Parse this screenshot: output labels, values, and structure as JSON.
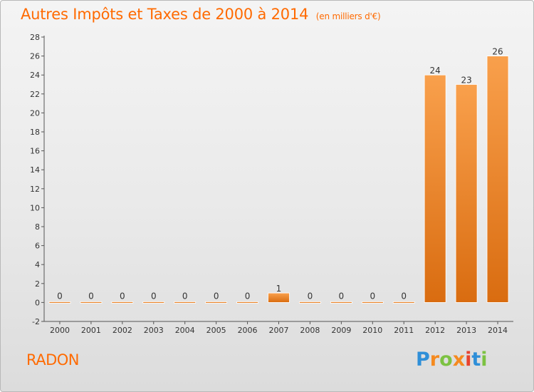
{
  "header": {
    "title": "Autres Impôts et Taxes de 2000 à 2014",
    "subtitle": "(en milliers d'€)"
  },
  "footer": {
    "place": "RADON",
    "brand": "Proxiti"
  },
  "colors": {
    "title": "#ff6a00",
    "bar_light": "#f9a04c",
    "bar_dark": "#d96c10",
    "logo": [
      "#2f8fd8",
      "#f58a1f",
      "#7cc242",
      "#f58a1f",
      "#e8432e",
      "#2f8fd8",
      "#7cc242"
    ]
  },
  "chart_data": {
    "type": "bar",
    "title": "Autres Impôts et Taxes de 2000 à 2014",
    "subtitle": "(en milliers d'€)",
    "categories": [
      "2000",
      "2001",
      "2002",
      "2003",
      "2004",
      "2005",
      "2006",
      "2007",
      "2008",
      "2009",
      "2010",
      "2011",
      "2012",
      "2013",
      "2014"
    ],
    "values": [
      0,
      0,
      0,
      0,
      0,
      0,
      0,
      1,
      0,
      0,
      0,
      0,
      24,
      23,
      26
    ],
    "value_labels": [
      "0",
      "0",
      "0",
      "0",
      "0",
      "0",
      "0",
      "1",
      "0",
      "0",
      "0",
      "0",
      "24",
      "23",
      "26"
    ],
    "ylim": [
      -2,
      28
    ],
    "yticks": [
      "-2",
      "0",
      "2",
      "4",
      "6",
      "8",
      "10",
      "12",
      "14",
      "16",
      "18",
      "20",
      "22",
      "24",
      "26",
      "28"
    ],
    "xlabel": "",
    "ylabel": "",
    "grid": false
  }
}
